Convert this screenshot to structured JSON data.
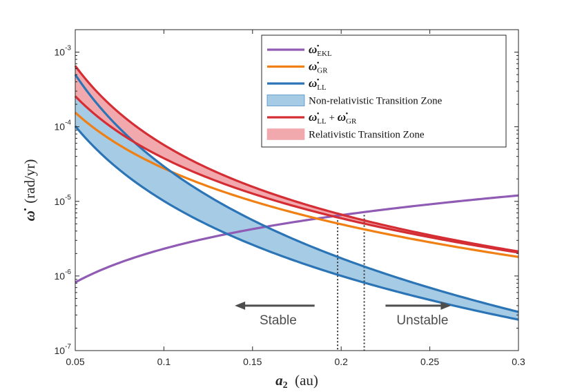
{
  "chart_data": {
    "type": "line",
    "xlabel": {
      "symbol": "a",
      "subscript": "2",
      "unit": "(au)"
    },
    "ylabel": {
      "symbol": "ω̇",
      "unit": "(rad/yr)"
    },
    "xlim": [
      0.05,
      0.3
    ],
    "ylim": [
      1e-07,
      0.002
    ],
    "yscale": "log",
    "x_ticks": [
      {
        "value": 0.05,
        "label": "0.05"
      },
      {
        "value": 0.1,
        "label": "0.1"
      },
      {
        "value": 0.15,
        "label": "0.15"
      },
      {
        "value": 0.2,
        "label": "0.2"
      },
      {
        "value": 0.25,
        "label": "0.25"
      },
      {
        "value": 0.3,
        "label": "0.3"
      }
    ],
    "y_ticks": [
      {
        "value": 1e-07,
        "base": "10",
        "exp": "-7"
      },
      {
        "value": 1e-06,
        "base": "10",
        "exp": "-6"
      },
      {
        "value": 1e-05,
        "base": "10",
        "exp": "-5"
      },
      {
        "value": 0.0001,
        "base": "10",
        "exp": "-4"
      },
      {
        "value": 0.001,
        "base": "10",
        "exp": "-3"
      }
    ],
    "series": [
      {
        "name": "ω̇_EKL",
        "color": "#8f5bb5",
        "model": "power",
        "x0": 0.05,
        "y0": 8.2e-07,
        "x1": 0.3,
        "y1": 1.2e-05
      },
      {
        "name": "ω̇_GR",
        "color": "#f07f14",
        "model": "power",
        "x0": 0.05,
        "y0": 0.000155,
        "x1": 0.3,
        "y1": 1.8e-06
      },
      {
        "name": "ω̇_LL upper",
        "color": "#2b74b6",
        "model": "power",
        "x0": 0.05,
        "y0": 0.0005,
        "x1": 0.3,
        "y1": 3.3e-07
      },
      {
        "name": "ω̇_LL lower",
        "color": "#2b74b6",
        "model": "power",
        "x0": 0.05,
        "y0": 0.000102,
        "x1": 0.3,
        "y1": 2.6e-07
      },
      {
        "name": "ω̇_LL + ω̇_GR upper",
        "color": "#d42e34",
        "model": "sum",
        "components": [
          "ω̇_GR",
          "ω̇_LL upper"
        ]
      },
      {
        "name": "ω̇_LL + ω̇_GR lower",
        "color": "#d42e34",
        "model": "sum",
        "components": [
          "ω̇_GR",
          "ω̇_LL lower"
        ]
      }
    ],
    "bands": [
      {
        "name": "Non-relativistic Transition Zone",
        "color": "#a6cbe5",
        "between": [
          "ω̇_LL upper",
          "ω̇_LL lower"
        ]
      },
      {
        "name": "Relativistic Transition Zone",
        "color": "#f2a9ae",
        "between": [
          "ω̇_LL + ω̇_GR upper",
          "ω̇_LL + ω̇_GR lower"
        ]
      }
    ],
    "vlines": [
      {
        "x": 0.198,
        "y_top": 6.2e-06,
        "style": "dotted"
      },
      {
        "x": 0.213,
        "y_top": 7.3e-06,
        "style": "dotted"
      }
    ],
    "annotations": [
      {
        "text": "Stable",
        "arrow": "left",
        "arrow_from": 0.185,
        "arrow_to": 0.14,
        "y": 4e-07
      },
      {
        "text": "Unstable",
        "arrow": "right",
        "arrow_from": 0.225,
        "arrow_to": 0.262,
        "y": 4e-07
      }
    ],
    "legend": {
      "position": "top-right",
      "entries": [
        {
          "kind": "line",
          "color": "#8f5bb5",
          "main": "ω̇",
          "sub": "EKL"
        },
        {
          "kind": "line",
          "color": "#f07f14",
          "main": "ω̇",
          "sub": "GR"
        },
        {
          "kind": "line",
          "color": "#2b74b6",
          "main": "ω̇",
          "sub": "LL"
        },
        {
          "kind": "patch",
          "color": "#a6cbe5",
          "edge": "#2b74b6",
          "text": "Non-relativistic Transition Zone"
        },
        {
          "kind": "line",
          "color": "#d42e34",
          "main": "ω̇",
          "sub": "LL",
          "plus": "+",
          "main2": "ω̇",
          "sub2": "GR"
        },
        {
          "kind": "patch",
          "color": "#f2a9ae",
          "edge": "#f2a9ae",
          "text": "Relativistic Transition Zone"
        }
      ]
    },
    "grid": false
  }
}
